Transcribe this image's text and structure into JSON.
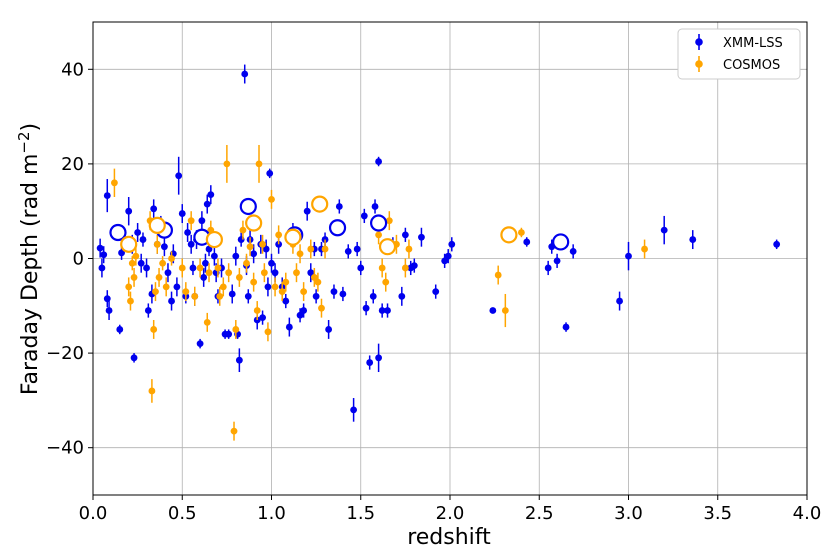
{
  "chart_data": {
    "type": "scatter",
    "xlabel": "redshift",
    "ylabel": "Faraday Depth (rad m",
    "ylabel_sup": "−2",
    "ylabel_close": ")",
    "xlim": [
      0,
      4.0
    ],
    "ylim": [
      -50,
      50
    ],
    "xticks": [
      0.0,
      0.5,
      1.0,
      1.5,
      2.0,
      2.5,
      3.0,
      3.5,
      4.0
    ],
    "xtick_labels": [
      "0.0",
      "0.5",
      "1.0",
      "1.5",
      "2.0",
      "2.5",
      "3.0",
      "3.5",
      "4.0"
    ],
    "yticks": [
      -40,
      -20,
      0,
      20,
      40
    ],
    "ytick_labels": [
      "−40",
      "−20",
      "0",
      "20",
      "40"
    ],
    "grid": true,
    "legend_position": "top-right",
    "colors": {
      "XMM-LSS": "#0000ee",
      "COSMOS": "#ffa500"
    },
    "series": [
      {
        "name": "XMM-LSS",
        "color": "#0000ee",
        "points": [
          [
            0.04,
            2.2,
            2
          ],
          [
            0.05,
            -2,
            2
          ],
          [
            0.06,
            0.8,
            1.8
          ],
          [
            0.08,
            13.3,
            3.5
          ],
          [
            0.08,
            -8.5,
            1.8
          ],
          [
            0.09,
            -11,
            2
          ],
          [
            0.12,
            5.5,
            1.5
          ],
          [
            0.15,
            -15,
            1
          ],
          [
            0.16,
            1.2,
            1.5
          ],
          [
            0.2,
            10,
            3
          ],
          [
            0.22,
            3,
            2
          ],
          [
            0.23,
            -21,
            1
          ],
          [
            0.25,
            5.5,
            2
          ],
          [
            0.27,
            -1,
            2
          ],
          [
            0.28,
            4,
            1.5
          ],
          [
            0.3,
            -2,
            2
          ],
          [
            0.31,
            -11,
            1.5
          ],
          [
            0.33,
            -7.5,
            2
          ],
          [
            0.34,
            10.5,
            2
          ],
          [
            0.36,
            3,
            2
          ],
          [
            0.38,
            7,
            2
          ],
          [
            0.4,
            2.5,
            2
          ],
          [
            0.42,
            -3,
            2
          ],
          [
            0.44,
            -9,
            2
          ],
          [
            0.45,
            1,
            2
          ],
          [
            0.47,
            -6,
            2
          ],
          [
            0.48,
            17.5,
            4
          ],
          [
            0.5,
            9.5,
            2
          ],
          [
            0.52,
            -8,
            1.5
          ],
          [
            0.53,
            5.5,
            2
          ],
          [
            0.55,
            3,
            2
          ],
          [
            0.56,
            -2,
            1.5
          ],
          [
            0.57,
            -8,
            2
          ],
          [
            0.58,
            4,
            2
          ],
          [
            0.6,
            -18,
            1
          ],
          [
            0.61,
            8,
            2
          ],
          [
            0.62,
            -4,
            2
          ],
          [
            0.63,
            -1,
            2
          ],
          [
            0.64,
            11.5,
            2
          ],
          [
            0.65,
            2,
            1.5
          ],
          [
            0.66,
            13.5,
            2
          ],
          [
            0.68,
            0.5,
            2
          ],
          [
            0.69,
            -3,
            2
          ],
          [
            0.7,
            -8,
            1.5
          ],
          [
            0.72,
            -2,
            2
          ],
          [
            0.74,
            -16,
            1
          ],
          [
            0.76,
            -16,
            1
          ],
          [
            0.78,
            -7.5,
            2
          ],
          [
            0.8,
            0.5,
            2
          ],
          [
            0.81,
            -16,
            1
          ],
          [
            0.82,
            -21.5,
            2.5
          ],
          [
            0.83,
            4,
            1.5
          ],
          [
            0.85,
            39,
            2
          ],
          [
            0.86,
            -1.5,
            2
          ],
          [
            0.87,
            -8,
            1.5
          ],
          [
            0.88,
            4,
            2
          ],
          [
            0.9,
            1,
            2
          ],
          [
            0.92,
            -13,
            2
          ],
          [
            0.94,
            3,
            2
          ],
          [
            0.95,
            -12.5,
            1.5
          ],
          [
            0.97,
            2,
            2
          ],
          [
            0.98,
            -6,
            2
          ],
          [
            0.99,
            18,
            1
          ],
          [
            1.0,
            -1,
            2
          ],
          [
            1.02,
            -3,
            2
          ],
          [
            1.04,
            3,
            2
          ],
          [
            1.06,
            -6,
            2
          ],
          [
            1.08,
            -9,
            1.5
          ],
          [
            1.1,
            -14.5,
            2
          ],
          [
            1.12,
            6,
            1.5
          ],
          [
            1.14,
            4.5,
            1.5
          ],
          [
            1.16,
            -12,
            1.5
          ],
          [
            1.18,
            -11,
            1.5
          ],
          [
            1.2,
            10,
            2
          ],
          [
            1.22,
            -3,
            2
          ],
          [
            1.24,
            2,
            1.5
          ],
          [
            1.25,
            -8,
            1.5
          ],
          [
            1.28,
            2,
            1.5
          ],
          [
            1.3,
            4,
            1.5
          ],
          [
            1.32,
            -15,
            2
          ],
          [
            1.35,
            -7,
            1.5
          ],
          [
            1.38,
            11,
            1.5
          ],
          [
            1.4,
            -7.5,
            1.5
          ],
          [
            1.43,
            1.5,
            1.5
          ],
          [
            1.46,
            -32,
            2.5
          ],
          [
            1.48,
            2,
            1.5
          ],
          [
            1.5,
            -2,
            1.5
          ],
          [
            1.52,
            9,
            1.5
          ],
          [
            1.53,
            -10.5,
            1.5
          ],
          [
            1.55,
            -22,
            1.5
          ],
          [
            1.57,
            -8,
            1.5
          ],
          [
            1.58,
            11,
            1.5
          ],
          [
            1.6,
            20.5,
            1
          ],
          [
            1.6,
            -21,
            3
          ],
          [
            1.62,
            -11,
            1.5
          ],
          [
            1.65,
            -11,
            1.5
          ],
          [
            1.68,
            3,
            1.5
          ],
          [
            1.73,
            -8,
            2
          ],
          [
            1.75,
            5,
            1.5
          ],
          [
            1.78,
            -2,
            1.5
          ],
          [
            1.8,
            -1.5,
            1.5
          ],
          [
            1.84,
            4.5,
            2
          ],
          [
            1.92,
            -7,
            1.5
          ],
          [
            1.97,
            -0.5,
            1.5
          ],
          [
            1.99,
            0.5,
            1.5
          ],
          [
            2.01,
            3,
            1.5
          ],
          [
            2.24,
            -11,
            0.5
          ],
          [
            2.43,
            3.5,
            1
          ],
          [
            2.55,
            -2,
            1.5
          ],
          [
            2.57,
            2.5,
            1.5
          ],
          [
            2.6,
            -0.5,
            1.5
          ],
          [
            2.65,
            -14.5,
            1
          ],
          [
            2.69,
            1.5,
            1.5
          ],
          [
            2.95,
            -9,
            2
          ],
          [
            3.0,
            0.5,
            3
          ],
          [
            3.2,
            6,
            3
          ],
          [
            3.36,
            4,
            2
          ],
          [
            3.83,
            3,
            1
          ]
        ],
        "open_points": [
          [
            0.14,
            5.5
          ],
          [
            0.4,
            6
          ],
          [
            0.61,
            4.5
          ],
          [
            0.87,
            11
          ],
          [
            1.13,
            5
          ],
          [
            1.37,
            6.5
          ],
          [
            1.6,
            7.5
          ],
          [
            2.62,
            3.5
          ]
        ]
      },
      {
        "name": "COSMOS",
        "color": "#ffa500",
        "points": [
          [
            0.12,
            16,
            3
          ],
          [
            0.2,
            -6,
            2
          ],
          [
            0.21,
            -9,
            2
          ],
          [
            0.22,
            -1,
            1.5
          ],
          [
            0.23,
            -4,
            2
          ],
          [
            0.24,
            0.5,
            2
          ],
          [
            0.32,
            8,
            2
          ],
          [
            0.33,
            -28,
            2.5
          ],
          [
            0.34,
            -15,
            2
          ],
          [
            0.35,
            -7,
            2
          ],
          [
            0.36,
            3,
            2
          ],
          [
            0.37,
            -4,
            2
          ],
          [
            0.39,
            -1,
            1.5
          ],
          [
            0.41,
            -6,
            2
          ],
          [
            0.44,
            0,
            1.5
          ],
          [
            0.5,
            -2,
            2
          ],
          [
            0.52,
            -7,
            2
          ],
          [
            0.55,
            8,
            2
          ],
          [
            0.57,
            -8,
            2
          ],
          [
            0.6,
            -2,
            2
          ],
          [
            0.64,
            -13.5,
            2
          ],
          [
            0.65,
            -3,
            2
          ],
          [
            0.66,
            6,
            2
          ],
          [
            0.7,
            -2,
            2
          ],
          [
            0.71,
            -8,
            2
          ],
          [
            0.73,
            -6,
            2
          ],
          [
            0.75,
            20,
            4
          ],
          [
            0.76,
            -3,
            2
          ],
          [
            0.79,
            -36.5,
            2
          ],
          [
            0.8,
            -15,
            2
          ],
          [
            0.82,
            -4,
            2
          ],
          [
            0.84,
            6,
            2
          ],
          [
            0.86,
            -1,
            2
          ],
          [
            0.88,
            2.5,
            2
          ],
          [
            0.9,
            -5,
            2
          ],
          [
            0.92,
            -11,
            2
          ],
          [
            0.93,
            20,
            4
          ],
          [
            0.95,
            3,
            2
          ],
          [
            0.96,
            -3,
            2
          ],
          [
            0.98,
            -15.5,
            2
          ],
          [
            1.0,
            12.5,
            2
          ],
          [
            1.02,
            -6,
            2
          ],
          [
            1.04,
            5,
            2
          ],
          [
            1.06,
            -7,
            2
          ],
          [
            1.08,
            -5,
            2
          ],
          [
            1.12,
            3,
            2
          ],
          [
            1.14,
            -3,
            2
          ],
          [
            1.16,
            1,
            2
          ],
          [
            1.18,
            -7,
            2
          ],
          [
            1.22,
            2,
            2
          ],
          [
            1.24,
            -4,
            2
          ],
          [
            1.26,
            -5,
            2
          ],
          [
            1.28,
            -10.5,
            2
          ],
          [
            1.3,
            2,
            2
          ],
          [
            1.6,
            5,
            2
          ],
          [
            1.62,
            -2,
            2
          ],
          [
            1.64,
            -5,
            2
          ],
          [
            1.66,
            8,
            2
          ],
          [
            1.7,
            3,
            2
          ],
          [
            1.75,
            -2,
            2
          ],
          [
            1.77,
            2,
            2
          ],
          [
            2.27,
            -3.5,
            2
          ],
          [
            2.31,
            -11,
            3.5
          ],
          [
            2.4,
            5.5,
            1
          ],
          [
            3.09,
            2,
            2
          ]
        ],
        "open_points": [
          [
            0.2,
            3
          ],
          [
            0.36,
            7
          ],
          [
            0.68,
            4
          ],
          [
            0.9,
            7.5
          ],
          [
            1.12,
            4.5
          ],
          [
            1.27,
            11.5
          ],
          [
            1.65,
            2.5
          ],
          [
            2.33,
            5
          ]
        ]
      }
    ]
  }
}
